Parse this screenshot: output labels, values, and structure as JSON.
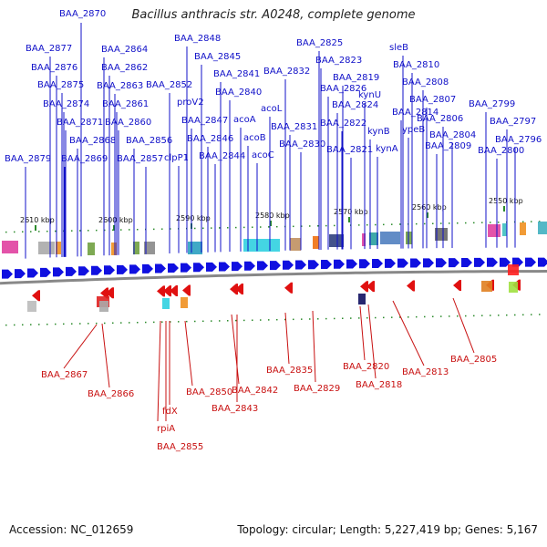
{
  "title": "Bacillus anthracis str. A0248, complete genome",
  "footer": {
    "accession": "Accession: NC_012659",
    "summary": "Topology: circular; Length: 5,227,419 bp; Genes: 5,167"
  },
  "scale_labels": [
    "2610 kbp",
    "2600 kbp",
    "2590 kbp",
    "2580 kbp",
    "2570 kbp",
    "2560 kbp",
    "2550 kbp"
  ],
  "forward_gene_labels": [
    "BAA_2870",
    "BAA_2877",
    "BAA_2876",
    "BAA_2875",
    "BAA_2874",
    "BAA_2871",
    "BAA_2868",
    "BAA_2869",
    "BAA_2879",
    "BAA_2864",
    "BAA_2862",
    "BAA_2863",
    "BAA_2861",
    "BAA_2860",
    "BAA_2856",
    "BAA_2857",
    "BAA_2852",
    "BAA_2848",
    "BAA_2845",
    "BAA_2841",
    "BAA_2840",
    "proV2",
    "BAA_2847",
    "BAA_2846",
    "clpP1",
    "BAA_2844",
    "acoA",
    "acoB",
    "acoL",
    "acoC",
    "BAA_2832",
    "BAA_2831",
    "BAA_2830",
    "BAA_2825",
    "BAA_2823",
    "BAA_2826",
    "BAA_2824",
    "BAA_2822",
    "BAA_2821",
    "BAA_2819",
    "kynU",
    "kynB",
    "kynA",
    "sleB",
    "BAA_2810",
    "BAA_2808",
    "BAA_2814",
    "ypeB",
    "BAA_2807",
    "BAA_2806",
    "BAA_2809",
    "BAA_2804",
    "BAA_2799",
    "BAA_2797",
    "BAA_2800",
    "BAA_2796"
  ],
  "reverse_gene_labels": [
    "BAA_2867",
    "BAA_2866",
    "BAA_2855",
    "rpiA",
    "fdX",
    "BAA_2850",
    "BAA_2842",
    "BAA_2843",
    "BAA_2835",
    "BAA_2829",
    "BAA_2820",
    "BAA_2818",
    "BAA_2813",
    "BAA_2805"
  ],
  "colors": {
    "forward_strand": "#1010e0",
    "reverse_strand": "#e01010",
    "forward_label": "#1010c8",
    "reverse_label": "#c81010",
    "backbone": "#888888",
    "tick_forward": "#2a8a2a"
  }
}
